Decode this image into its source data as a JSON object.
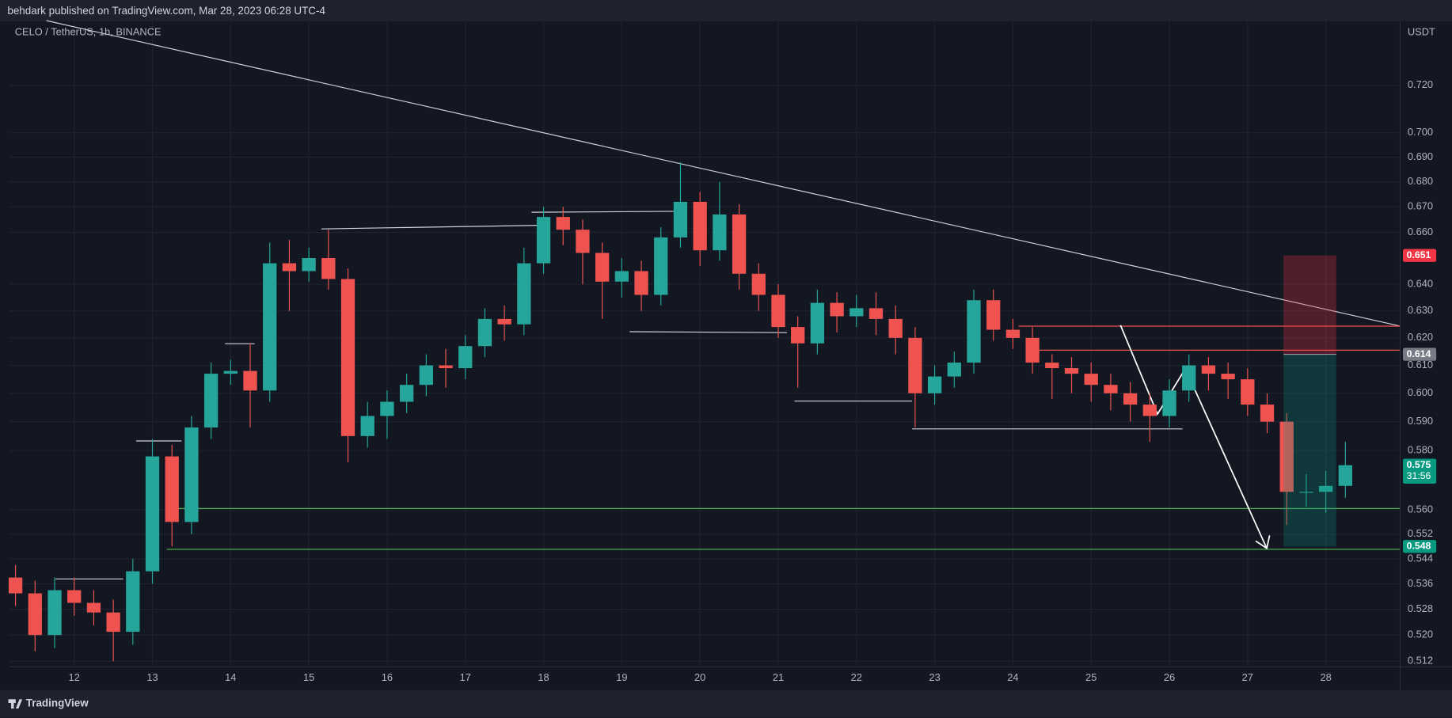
{
  "header": "behdark published on TradingView.com, Mar 28, 2023 06:28 UTC-4",
  "footer": "TradingView",
  "chart_data": {
    "type": "candlestick",
    "title": "CELO / TetherUS, 1h, BINANCE",
    "y_unit": "USDT",
    "log_scale": true,
    "grid": true,
    "up_color": "#26a69a",
    "down_color": "#ef5350",
    "xlim": [
      11.17,
      28.95
    ],
    "xticks": [
      12,
      13,
      14,
      15,
      16,
      17,
      18,
      19,
      20,
      21,
      22,
      23,
      24,
      25,
      26,
      27,
      28
    ],
    "ylim": [
      0.5103,
      0.7477
    ],
    "yticks": [
      {
        "value": 0.512,
        "label": "0.512"
      },
      {
        "value": 0.52,
        "label": "0.520"
      },
      {
        "value": 0.528,
        "label": "0.528"
      },
      {
        "value": 0.536,
        "label": "0.536"
      },
      {
        "value": 0.544,
        "label": "0.544"
      },
      {
        "value": 0.552,
        "label": "0.552"
      },
      {
        "value": 0.56,
        "label": "0.560"
      },
      {
        "value": 0.58,
        "label": "0.580"
      },
      {
        "value": 0.59,
        "label": "0.590"
      },
      {
        "value": 0.6,
        "label": "0.600"
      },
      {
        "value": 0.61,
        "label": "0.610"
      },
      {
        "value": 0.62,
        "label": "0.620"
      },
      {
        "value": 0.63,
        "label": "0.630"
      },
      {
        "value": 0.64,
        "label": "0.640"
      },
      {
        "value": 0.66,
        "label": "0.660"
      },
      {
        "value": 0.67,
        "label": "0.670"
      },
      {
        "value": 0.68,
        "label": "0.680"
      },
      {
        "value": 0.69,
        "label": "0.690"
      },
      {
        "value": 0.7,
        "label": "0.700"
      },
      {
        "value": 0.72,
        "label": "0.720"
      }
    ],
    "x": [
      11.25,
      11.5,
      11.75,
      12,
      12.25,
      12.5,
      12.75,
      13,
      13.25,
      13.5,
      13.75,
      14,
      14.25,
      14.5,
      14.75,
      15,
      15.25,
      15.5,
      15.75,
      16,
      16.25,
      16.5,
      16.75,
      17,
      17.25,
      17.5,
      17.75,
      18,
      18.25,
      18.5,
      18.75,
      19,
      19.25,
      19.5,
      19.75,
      20,
      20.25,
      20.5,
      20.75,
      21,
      21.25,
      21.5,
      21.75,
      22,
      22.25,
      22.5,
      22.75,
      23,
      23.25,
      23.5,
      23.75,
      24,
      24.25,
      24.5,
      24.75,
      25,
      25.25,
      25.5,
      25.75,
      26,
      26.25,
      26.5,
      26.75,
      27,
      27.25,
      27.5,
      27.75,
      28,
      28.25
    ],
    "open": [
      0.538,
      0.533,
      0.52,
      0.534,
      0.53,
      0.527,
      0.521,
      0.54,
      0.578,
      0.556,
      0.588,
      0.607,
      0.608,
      0.601,
      0.648,
      0.645,
      0.65,
      0.642,
      0.585,
      0.592,
      0.597,
      0.603,
      0.61,
      0.609,
      0.617,
      0.627,
      0.625,
      0.648,
      0.666,
      0.661,
      0.652,
      0.641,
      0.645,
      0.636,
      0.658,
      0.672,
      0.653,
      0.667,
      0.644,
      0.636,
      0.624,
      0.618,
      0.633,
      0.628,
      0.631,
      0.627,
      0.62,
      0.6,
      0.606,
      0.611,
      0.634,
      0.623,
      0.62,
      0.611,
      0.609,
      0.607,
      0.603,
      0.6,
      0.596,
      0.592,
      0.601,
      0.61,
      0.607,
      0.605,
      0.596,
      0.59,
      0.566,
      0.566,
      0.568
    ],
    "high": [
      0.542,
      0.537,
      0.538,
      0.538,
      0.534,
      0.531,
      0.544,
      0.584,
      0.582,
      0.592,
      0.611,
      0.612,
      0.618,
      0.656,
      0.657,
      0.654,
      0.661,
      0.646,
      0.597,
      0.601,
      0.607,
      0.614,
      0.616,
      0.621,
      0.631,
      0.632,
      0.654,
      0.67,
      0.67,
      0.665,
      0.656,
      0.65,
      0.649,
      0.662,
      0.688,
      0.676,
      0.68,
      0.671,
      0.648,
      0.64,
      0.628,
      0.638,
      0.637,
      0.636,
      0.637,
      0.632,
      0.624,
      0.61,
      0.615,
      0.638,
      0.638,
      0.627,
      0.624,
      0.614,
      0.613,
      0.611,
      0.607,
      0.604,
      0.6,
      0.605,
      0.614,
      0.613,
      0.611,
      0.609,
      0.6,
      0.593,
      0.572,
      0.573,
      0.583
    ],
    "low": [
      0.529,
      0.515,
      0.516,
      0.526,
      0.523,
      0.512,
      0.517,
      0.536,
      0.548,
      0.552,
      0.584,
      0.603,
      0.588,
      0.597,
      0.63,
      0.641,
      0.638,
      0.576,
      0.581,
      0.584,
      0.593,
      0.599,
      0.602,
      0.605,
      0.613,
      0.619,
      0.621,
      0.644,
      0.655,
      0.64,
      0.627,
      0.635,
      0.63,
      0.632,
      0.654,
      0.647,
      0.649,
      0.638,
      0.63,
      0.62,
      0.602,
      0.614,
      0.622,
      0.624,
      0.621,
      0.614,
      0.588,
      0.596,
      0.602,
      0.607,
      0.619,
      0.616,
      0.607,
      0.598,
      0.6,
      0.597,
      0.594,
      0.59,
      0.583,
      0.588,
      0.597,
      0.601,
      0.598,
      0.592,
      0.586,
      0.555,
      0.561,
      0.559,
      0.564
    ],
    "close": [
      0.533,
      0.52,
      0.534,
      0.53,
      0.527,
      0.521,
      0.54,
      0.578,
      0.556,
      0.588,
      0.607,
      0.608,
      0.601,
      0.648,
      0.645,
      0.65,
      0.642,
      0.585,
      0.592,
      0.597,
      0.603,
      0.61,
      0.609,
      0.617,
      0.627,
      0.625,
      0.648,
      0.666,
      0.661,
      0.652,
      0.641,
      0.645,
      0.636,
      0.658,
      0.672,
      0.653,
      0.667,
      0.644,
      0.636,
      0.624,
      0.618,
      0.633,
      0.628,
      0.631,
      0.627,
      0.62,
      0.6,
      0.606,
      0.611,
      0.634,
      0.623,
      0.62,
      0.611,
      0.609,
      0.607,
      0.603,
      0.6,
      0.596,
      0.592,
      0.601,
      0.61,
      0.607,
      0.605,
      0.596,
      0.59,
      0.566,
      0.566,
      0.568,
      0.575
    ],
    "position": {
      "stop": 0.651,
      "entry": 0.614,
      "target": 0.548
    },
    "last_price": {
      "value": 0.575,
      "countdown": "31:56"
    }
  }
}
